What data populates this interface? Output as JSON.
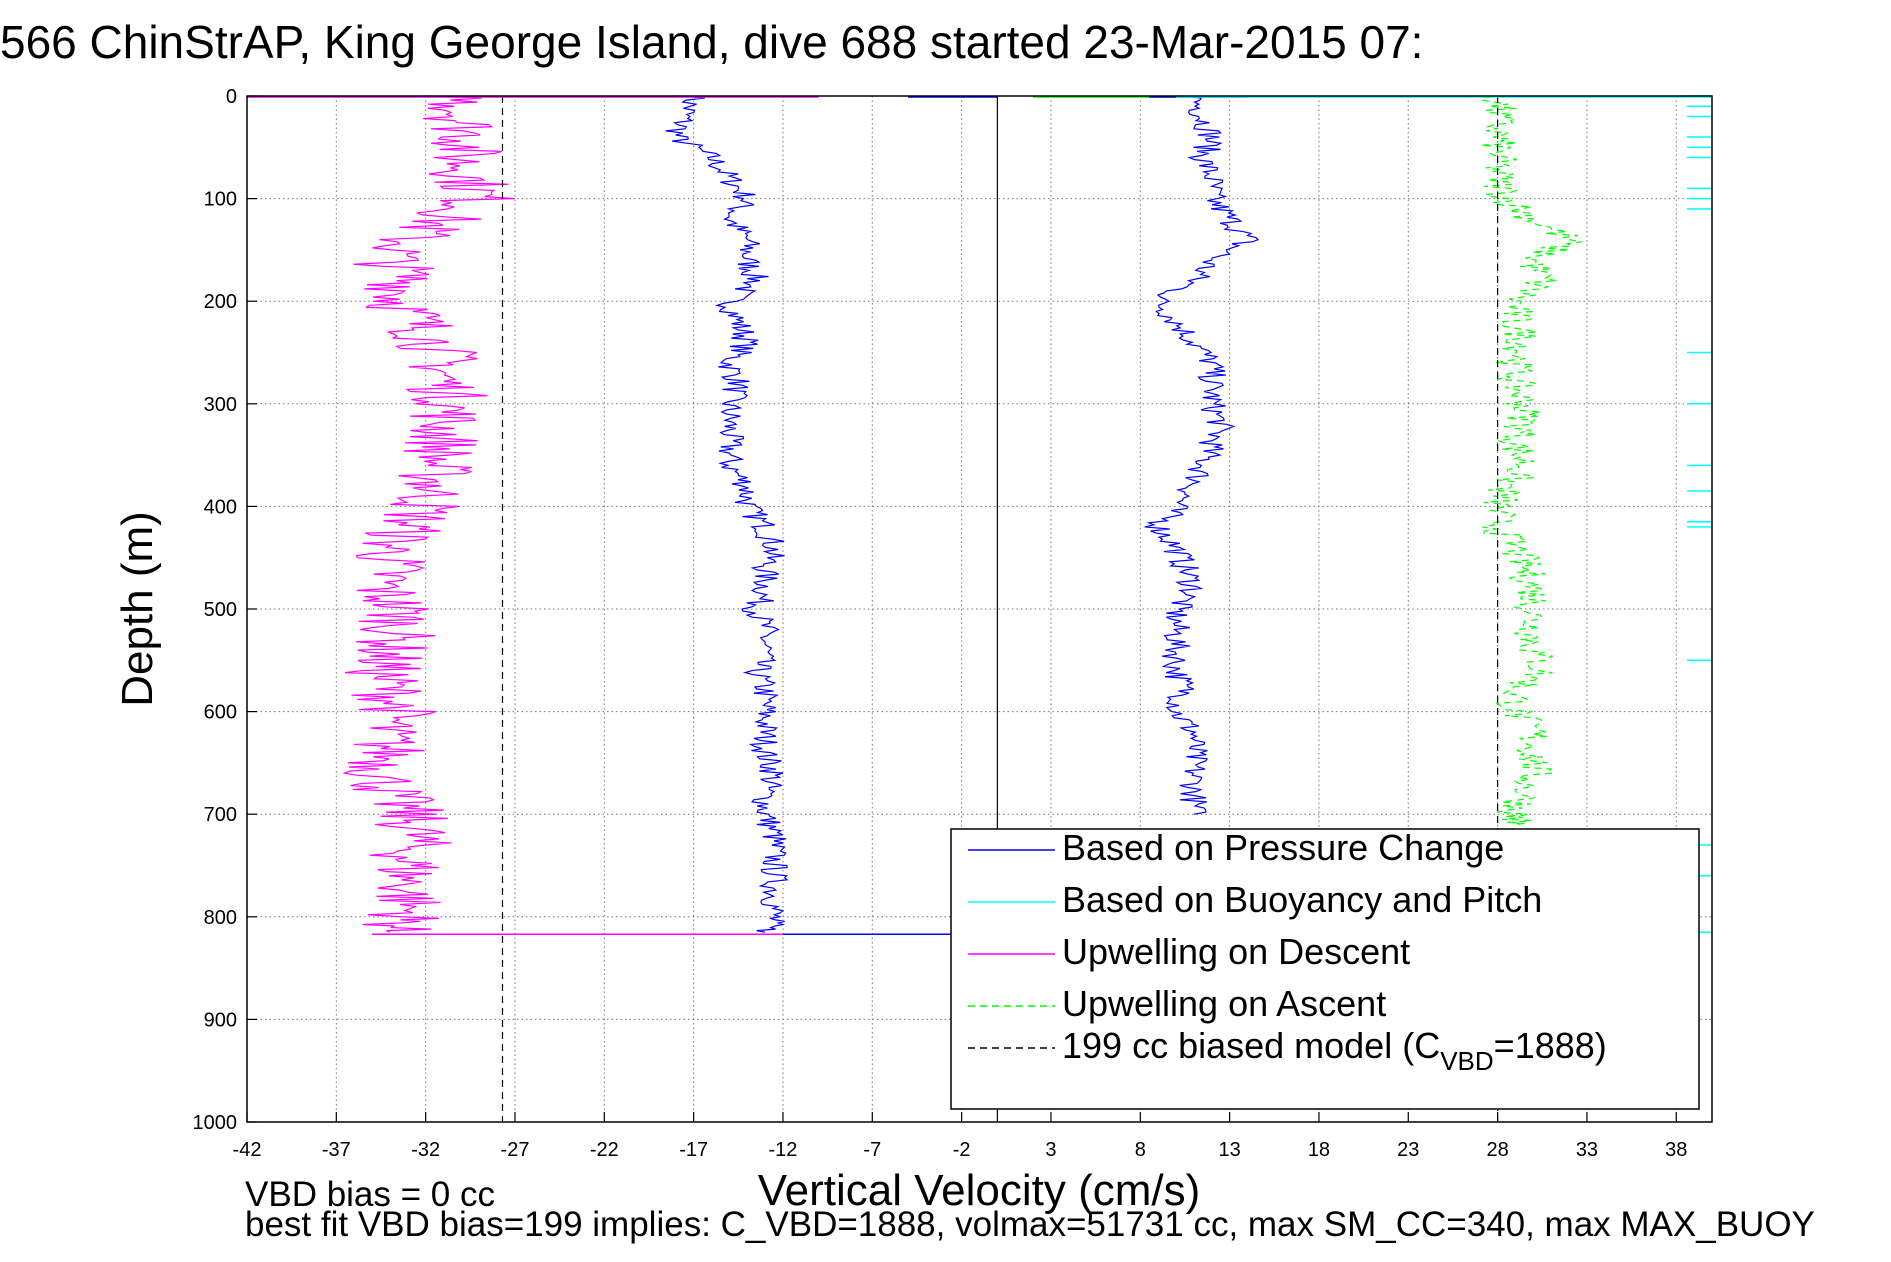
{
  "chart_data": {
    "type": "line",
    "title": "566 ChinStrAP, King George Island, dive 688 started 23-Mar-2015 07:",
    "xlabel": "Vertical Velocity (cm/s)",
    "ylabel": "Depth (m)",
    "xlim": [
      -42,
      40
    ],
    "ylim": [
      0,
      1000
    ],
    "y_reversed": true,
    "grid": true,
    "grid_style": "dotted",
    "xticks": [
      -42,
      -37,
      -32,
      -27,
      -22,
      -17,
      -12,
      -7,
      -2,
      3,
      8,
      13,
      18,
      23,
      28,
      33,
      38
    ],
    "yticks": [
      0,
      100,
      200,
      300,
      400,
      500,
      600,
      700,
      800,
      900,
      1000
    ],
    "zero_line_x": 0,
    "legend_position": "bottom-right",
    "legend": [
      {
        "label": "Based on Pressure Change",
        "color": "#0000ff",
        "style": "solid"
      },
      {
        "label": "Based on Buoyancy and Pitch",
        "color": "#00ffff",
        "style": "solid"
      },
      {
        "label": "Upwelling on Descent",
        "color": "#ff00ff",
        "style": "solid"
      },
      {
        "label": "Upwelling on Ascent",
        "color": "#00ff00",
        "style": "dashed"
      },
      {
        "label": "199 cc biased model (C",
        "label_sub": "VBD",
        "label_tail": "=1888)",
        "color": "#000000",
        "style": "dashed"
      }
    ],
    "series": [
      {
        "color": "#0000ff",
        "style": "solid",
        "depth": [
          0,
          20,
          40,
          60,
          80,
          100,
          120,
          140,
          160,
          180,
          200,
          220,
          240,
          260,
          280,
          300,
          320,
          340,
          360,
          380,
          400,
          420,
          440,
          460,
          480,
          500,
          520,
          540,
          560,
          580,
          600,
          620,
          640,
          660,
          680,
          700,
          720,
          740,
          760,
          780,
          800,
          815
        ],
        "values": [
          -17,
          -17.5,
          -18,
          -16,
          -15,
          -14,
          -15,
          -14,
          -14,
          -13.5,
          -15,
          -14.5,
          -14,
          -15,
          -14.5,
          -15,
          -15,
          -15,
          -15,
          -14,
          -14,
          -13,
          -12.5,
          -13,
          -13,
          -13.5,
          -13,
          -13,
          -13.5,
          -13,
          -13,
          -13,
          -13,
          -12.5,
          -13,
          -13,
          -12.5,
          -12.5,
          -12.5,
          -12.5,
          -12.5,
          -13
        ]
      },
      {
        "color": "#0000ff",
        "style": "solid",
        "depth": [
          0,
          20,
          40,
          60,
          80,
          100,
          120,
          140,
          160,
          180,
          200,
          220,
          240,
          260,
          280,
          300,
          320,
          340,
          360,
          380,
          400,
          420,
          440,
          460,
          480,
          500,
          520,
          540,
          560,
          580,
          600,
          620,
          640,
          660,
          680,
          700
        ],
        "values": [
          11,
          11.5,
          12,
          11.5,
          12,
          12,
          13,
          14,
          12,
          11,
          9,
          10,
          11,
          12,
          12,
          12,
          12.5,
          12,
          11.5,
          11,
          10,
          9,
          10,
          10.5,
          11,
          10,
          10,
          10,
          10,
          10.5,
          10,
          11,
          11,
          11,
          11,
          11
        ]
      },
      {
        "color": "#ff00ff",
        "style": "solid",
        "depth": [
          0,
          20,
          40,
          60,
          80,
          100,
          120,
          140,
          160,
          180,
          200,
          220,
          240,
          260,
          280,
          300,
          320,
          340,
          360,
          380,
          400,
          420,
          440,
          460,
          480,
          500,
          520,
          540,
          560,
          580,
          600,
          620,
          640,
          660,
          680,
          700,
          720,
          740,
          760,
          780,
          800,
          815
        ],
        "values": [
          -30,
          -30,
          -29.5,
          -30,
          -29.5,
          -29,
          -31,
          -33,
          -34,
          -33,
          -33.5,
          -32.5,
          -31.5,
          -31,
          -31,
          -30.5,
          -31,
          -31,
          -31.5,
          -31.5,
          -32,
          -33,
          -34,
          -34,
          -34.5,
          -33.5,
          -33.5,
          -34,
          -34.5,
          -34,
          -33.5,
          -34.5,
          -34,
          -34.5,
          -34,
          -33,
          -32.5,
          -33,
          -33,
          -33,
          -33,
          -34
        ]
      },
      {
        "color": "#00ff00",
        "style": "dashed",
        "depth": [
          0,
          20,
          40,
          60,
          80,
          100,
          120,
          140,
          160,
          180,
          200,
          220,
          240,
          260,
          280,
          300,
          320,
          340,
          360,
          380,
          400,
          420,
          440,
          460,
          480,
          500,
          520,
          540,
          560,
          580,
          600,
          620,
          640,
          660,
          680,
          700,
          710
        ],
        "values": [
          28,
          28,
          28,
          28,
          28,
          28.5,
          30,
          32,
          30,
          30.5,
          29,
          29,
          29.5,
          29,
          29,
          29.5,
          29.5,
          29,
          29.5,
          28.5,
          28,
          28,
          29,
          29.5,
          30,
          30,
          30,
          30,
          30.5,
          29,
          29,
          30,
          30,
          30,
          29.5,
          29,
          29
        ]
      },
      {
        "color": "#00ffff",
        "style": "solid",
        "depth": [
          0,
          10,
          20,
          40,
          50,
          60,
          90,
          100,
          110,
          250,
          300,
          360,
          385,
          415,
          420,
          550,
          730,
          760,
          815
        ],
        "values": [
          40,
          40,
          40,
          40,
          40,
          40,
          40,
          40,
          40,
          40,
          40,
          40,
          40,
          40,
          40,
          40,
          40,
          40,
          40
        ]
      },
      {
        "color": "#000000",
        "style": "dashed",
        "depth": [
          0,
          1000
        ],
        "values": [
          -27.7,
          -27.7
        ]
      },
      {
        "color": "#000000",
        "style": "dashed",
        "depth": [
          0,
          1000
        ],
        "values": [
          28,
          28
        ]
      }
    ],
    "surface_line_depth": 0,
    "bottom_line_depth": 817
  },
  "footer": {
    "line1": "VBD bias = 0 cc",
    "line2": "best fit VBD bias=199 implies: C_VBD=1888, volmax=51731 cc, max SM_CC=340, max MAX_BUOY"
  }
}
